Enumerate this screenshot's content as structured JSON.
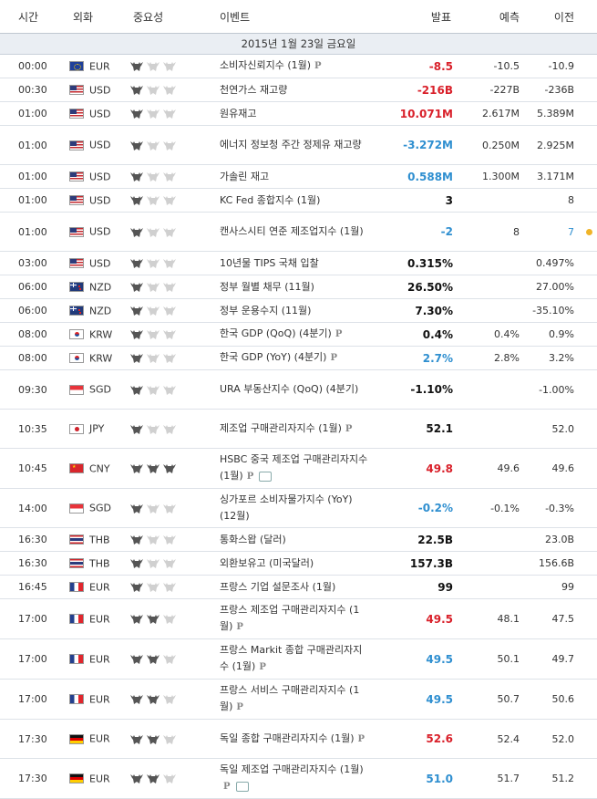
{
  "columns": {
    "time": "시간",
    "currency": "외화",
    "importance": "중요성",
    "event": "이벤트",
    "actual": "발표",
    "forecast": "예측",
    "previous": "이전"
  },
  "day_header": "2015년 1월 23일 금요일",
  "colors": {
    "negative": "#d9202a",
    "positive": "#2f8fd0",
    "neutral": "#111111",
    "alert_dot": "#f0b428"
  },
  "rows": [
    {
      "time": "00:00",
      "flag": "eu-flag-icon",
      "currency": "EUR",
      "imp": 1,
      "event": "소비자신뢰지수 (1월)",
      "p": "P",
      "speech": false,
      "actual": "-8.5",
      "act_color": "red",
      "forecast": "-10.5",
      "previous": "-10.9",
      "prev_color": "",
      "h": 25
    },
    {
      "time": "00:30",
      "flag": "us-flag-icon",
      "currency": "USD",
      "imp": 1,
      "event": "천연가스 재고량",
      "p": "",
      "speech": false,
      "actual": "-216B",
      "act_color": "red",
      "forecast": "-227B",
      "previous": "-236B",
      "prev_color": "",
      "h": 26
    },
    {
      "time": "01:00",
      "flag": "us-flag-icon",
      "currency": "USD",
      "imp": 1,
      "event": "원유재고",
      "p": "",
      "speech": false,
      "actual": "10.071M",
      "act_color": "red",
      "forecast": "2.617M",
      "previous": "5.389M",
      "prev_color": "",
      "h": 26
    },
    {
      "time": "01:00",
      "flag": "us-flag-icon",
      "currency": "USD",
      "imp": 1,
      "event": "에너지 정보청 주간 정제유 재고량",
      "p": "",
      "speech": false,
      "actual": "-3.272M",
      "act_color": "blue",
      "forecast": "0.250M",
      "previous": "2.925M",
      "prev_color": "",
      "h": 43
    },
    {
      "time": "01:00",
      "flag": "us-flag-icon",
      "currency": "USD",
      "imp": 1,
      "event": "가솔린 재고",
      "p": "",
      "speech": false,
      "actual": "0.588M",
      "act_color": "blue",
      "forecast": "1.300M",
      "previous": "3.171M",
      "prev_color": "",
      "h": 26
    },
    {
      "time": "01:00",
      "flag": "us-flag-icon",
      "currency": "USD",
      "imp": 1,
      "event": "KC Fed 종합지수 (1월)",
      "p": "",
      "speech": false,
      "actual": "3",
      "act_color": "black",
      "forecast": "",
      "previous": "8",
      "prev_color": "",
      "h": 26
    },
    {
      "time": "01:00",
      "flag": "us-flag-icon",
      "currency": "USD",
      "imp": 1,
      "event": "캔사스시티 연준 제조업지수 (1월)",
      "p": "",
      "speech": false,
      "actual": "-2",
      "act_color": "blue",
      "forecast": "8",
      "previous": "7",
      "prev_color": "blue",
      "dot": true,
      "h": 43
    },
    {
      "time": "03:00",
      "flag": "us-flag-icon",
      "currency": "USD",
      "imp": 1,
      "event": "10년물 TIPS 국채 입찰",
      "p": "",
      "speech": false,
      "actual": "0.315%",
      "act_color": "black",
      "forecast": "",
      "previous": "0.497%",
      "prev_color": "",
      "h": 26
    },
    {
      "time": "06:00",
      "flag": "nz-flag-icon",
      "currency": "NZD",
      "imp": 1,
      "event": "정부 월별 채무 (11월)",
      "p": "",
      "speech": false,
      "actual": "26.50%",
      "act_color": "black",
      "forecast": "",
      "previous": "27.00%",
      "prev_color": "",
      "h": 26
    },
    {
      "time": "06:00",
      "flag": "nz-flag-icon",
      "currency": "NZD",
      "imp": 1,
      "event": "정부 운용수지 (11월)",
      "p": "",
      "speech": false,
      "actual": "7.30%",
      "act_color": "black",
      "forecast": "",
      "previous": "-35.10%",
      "prev_color": "",
      "h": 26
    },
    {
      "time": "08:00",
      "flag": "kr-flag-icon",
      "currency": "KRW",
      "imp": 1,
      "event": "한국 GDP (QoQ) (4분기)",
      "p": "P",
      "speech": false,
      "actual": "0.4%",
      "act_color": "black",
      "forecast": "0.4%",
      "previous": "0.9%",
      "prev_color": "",
      "h": 26
    },
    {
      "time": "08:00",
      "flag": "kr-flag-icon",
      "currency": "KRW",
      "imp": 1,
      "event": "한국 GDP (YoY) (4분기)",
      "p": "P",
      "speech": false,
      "actual": "2.7%",
      "act_color": "blue",
      "forecast": "2.8%",
      "previous": "3.2%",
      "prev_color": "",
      "h": 26
    },
    {
      "time": "09:30",
      "flag": "sg-flag-icon",
      "currency": "SGD",
      "imp": 1,
      "event": "URA 부동산지수 (QoQ) (4분기)",
      "p": "",
      "speech": false,
      "actual": "-1.10%",
      "act_color": "black",
      "forecast": "",
      "previous": "-1.00%",
      "prev_color": "",
      "h": 43
    },
    {
      "time": "10:35",
      "flag": "jp-flag-icon",
      "currency": "JPY",
      "imp": 1,
      "event": "제조업 구매관리자지수 (1월)",
      "p": "P",
      "speech": false,
      "actual": "52.1",
      "act_color": "black",
      "forecast": "",
      "previous": "52.0",
      "prev_color": "",
      "h": 43
    },
    {
      "time": "10:45",
      "flag": "cn-flag-icon",
      "currency": "CNY",
      "imp": 3,
      "event": "HSBC 중국 제조업 구매관리자지수 (1월)",
      "p": "P",
      "speech": true,
      "actual": "49.8",
      "act_color": "red",
      "forecast": "49.6",
      "previous": "49.6",
      "prev_color": "",
      "h": 43
    },
    {
      "time": "14:00",
      "flag": "sg-flag-icon",
      "currency": "SGD",
      "imp": 1,
      "event": "싱가포르 소비자물가지수 (YoY) (12월)",
      "p": "",
      "speech": false,
      "actual": "-0.2%",
      "act_color": "blue",
      "forecast": "-0.1%",
      "previous": "-0.3%",
      "prev_color": "",
      "h": 43
    },
    {
      "time": "16:30",
      "flag": "th-flag-icon",
      "currency": "THB",
      "imp": 1,
      "event": "통화스왑 (달러)",
      "p": "",
      "speech": false,
      "actual": "22.5B",
      "act_color": "black",
      "forecast": "",
      "previous": "23.0B",
      "prev_color": "",
      "h": 26
    },
    {
      "time": "16:30",
      "flag": "th-flag-icon",
      "currency": "THB",
      "imp": 1,
      "event": "외환보유고 (미국달러)",
      "p": "",
      "speech": false,
      "actual": "157.3B",
      "act_color": "black",
      "forecast": "",
      "previous": "156.6B",
      "prev_color": "",
      "h": 26
    },
    {
      "time": "16:45",
      "flag": "fr-flag-icon",
      "currency": "EUR",
      "imp": 1,
      "event": "프랑스 기업 설문조사 (1월)",
      "p": "",
      "speech": false,
      "actual": "99",
      "act_color": "black",
      "forecast": "",
      "previous": "99",
      "prev_color": "",
      "h": 26
    },
    {
      "time": "17:00",
      "flag": "fr-flag-icon",
      "currency": "EUR",
      "imp": 2,
      "event": "프랑스 제조업 구매관리자지수 (1월)",
      "p": "P",
      "speech": false,
      "actual": "49.5",
      "act_color": "red",
      "forecast": "48.1",
      "previous": "47.5",
      "prev_color": "",
      "h": 43
    },
    {
      "time": "17:00",
      "flag": "fr-flag-icon",
      "currency": "EUR",
      "imp": 2,
      "event": "프랑스 Markit 종합 구매관리자지수 (1월)",
      "p": "P",
      "speech": false,
      "actual": "49.5",
      "act_color": "blue",
      "forecast": "50.1",
      "previous": "49.7",
      "prev_color": "",
      "h": 43
    },
    {
      "time": "17:00",
      "flag": "fr-flag-icon",
      "currency": "EUR",
      "imp": 2,
      "event": "프랑스 서비스 구매관리자지수 (1월)",
      "p": "P",
      "speech": false,
      "actual": "49.5",
      "act_color": "blue",
      "forecast": "50.7",
      "previous": "50.6",
      "prev_color": "",
      "h": 43
    },
    {
      "time": "17:30",
      "flag": "de-flag-icon",
      "currency": "EUR",
      "imp": 2,
      "event": "독일 종합 구매관리자지수 (1월)",
      "p": "P",
      "speech": false,
      "actual": "52.6",
      "act_color": "red",
      "forecast": "52.4",
      "previous": "52.0",
      "prev_color": "",
      "h": 43
    },
    {
      "time": "17:30",
      "flag": "de-flag-icon",
      "currency": "EUR",
      "imp": 2,
      "event": "독일 제조업 구매관리자지수 (1월)",
      "p": "P",
      "speech": true,
      "actual": "51.0",
      "act_color": "blue",
      "forecast": "51.7",
      "previous": "51.2",
      "prev_color": "",
      "h": 43
    }
  ]
}
